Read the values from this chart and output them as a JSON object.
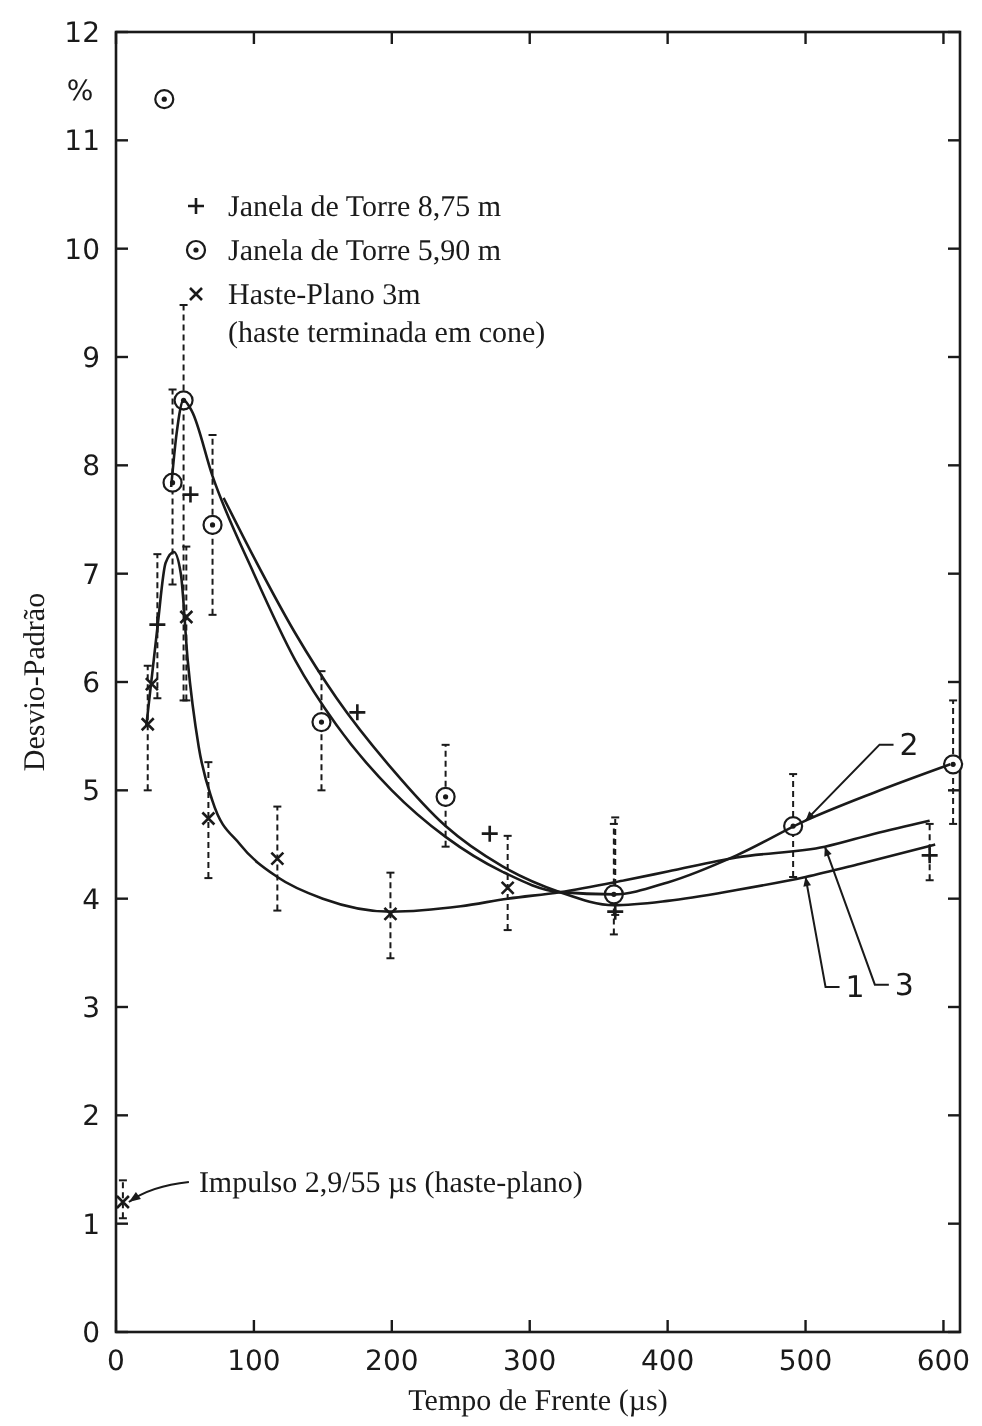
{
  "chart_data": {
    "type": "scatter",
    "xlabel": "Tempo de Frente (µs)",
    "ylabel": "Desvio-Padrão",
    "xlim": [
      0,
      612
    ],
    "xticks": [
      0,
      100,
      200,
      300,
      400,
      500,
      600
    ],
    "ylim": [
      0,
      12
    ],
    "yticks": [
      0,
      1,
      2,
      3,
      4,
      5,
      6,
      7,
      8,
      9,
      10,
      11,
      12
    ],
    "grid": false,
    "legend": "top left",
    "annotations": [
      "%",
      {
        "text": "Impulso 2,9/55 µs (haste-plano)",
        "x": 5,
        "y": 1.2
      }
    ],
    "series": [
      {
        "name": "Janela de Torre 8,75 m",
        "color": "#1a1a1a",
        "marker": "plus",
        "x": [
          30,
          54,
          175,
          271,
          362,
          590
        ],
        "values": [
          6.53,
          7.73,
          5.72,
          4.6,
          3.88,
          4.4
        ],
        "errors": [
          [
            5.85,
            7.18
          ],
          null,
          null,
          null,
          [
            3.85,
            4.75
          ],
          [
            4.17,
            4.69
          ]
        ]
      },
      {
        "name": "Janela de Torre 5,90 m",
        "color": "#1a1a1a",
        "marker": "circle",
        "x": [
          35,
          41,
          49,
          70,
          149,
          239,
          361,
          491,
          607
        ],
        "values": [
          11.38,
          7.84,
          8.6,
          7.45,
          5.63,
          4.94,
          4.04,
          4.67,
          5.24
        ],
        "errors": [
          null,
          [
            6.9,
            8.7
          ],
          [
            5.83,
            9.48
          ],
          [
            6.62,
            8.28
          ],
          [
            5.0,
            6.1
          ],
          [
            4.48,
            5.42
          ],
          [
            3.67,
            4.69
          ],
          [
            4.2,
            5.15
          ],
          [
            4.69,
            5.83
          ]
        ]
      },
      {
        "name": "Haste-Plano 3m\n(haste terminada em cone)",
        "color": "#1a1a1a",
        "marker": "cross",
        "x": [
          5,
          23,
          26,
          51,
          67,
          117,
          199,
          284
        ],
        "values": [
          1.2,
          5.61,
          5.98,
          6.6,
          4.74,
          4.37,
          3.86,
          4.1
        ],
        "errors": [
          [
            1.05,
            1.4
          ],
          [
            5.0,
            6.15
          ],
          null,
          [
            5.83,
            7.25
          ],
          [
            4.19,
            5.26
          ],
          [
            3.89,
            4.85
          ],
          [
            3.45,
            4.24
          ],
          [
            3.71,
            4.58
          ]
        ]
      },
      {
        "type": "line",
        "name": "1",
        "color": "#1a1a1a",
        "marker": "none",
        "x": [
          78,
          100,
          130,
          160,
          200,
          239,
          280,
          322,
          361,
          400,
          450,
          500,
          539,
          594
        ],
        "values": [
          7.7,
          7.15,
          6.45,
          5.85,
          5.2,
          4.67,
          4.3,
          4.06,
          3.94,
          3.98,
          4.08,
          4.2,
          4.32,
          4.5
        ]
      },
      {
        "type": "line",
        "name": "2",
        "color": "#1a1a1a",
        "marker": "none",
        "x": [
          40,
          44,
          49,
          55,
          70,
          100,
          130,
          160,
          200,
          239,
          280,
          322,
          361,
          400,
          450,
          500,
          550,
          605
        ],
        "values": [
          7.8,
          8.3,
          8.6,
          8.5,
          7.9,
          7.0,
          6.2,
          5.6,
          5.0,
          4.57,
          4.25,
          4.06,
          4.04,
          4.15,
          4.4,
          4.72,
          4.98,
          5.24
        ]
      },
      {
        "type": "line",
        "name": "3",
        "color": "#1a1a1a",
        "marker": "none",
        "x": [
          22,
          30,
          36,
          42,
          47,
          52,
          60,
          70,
          90,
          117,
          150,
          199,
          250,
          284,
          322,
          369,
          400,
          450,
          514,
          550,
          590
        ],
        "values": [
          5.6,
          6.5,
          7.1,
          7.2,
          7.0,
          6.2,
          5.4,
          4.9,
          4.5,
          4.2,
          4.0,
          3.88,
          3.93,
          4.0,
          4.06,
          4.17,
          4.25,
          4.38,
          4.48,
          4.6,
          4.72
        ]
      }
    ]
  }
}
